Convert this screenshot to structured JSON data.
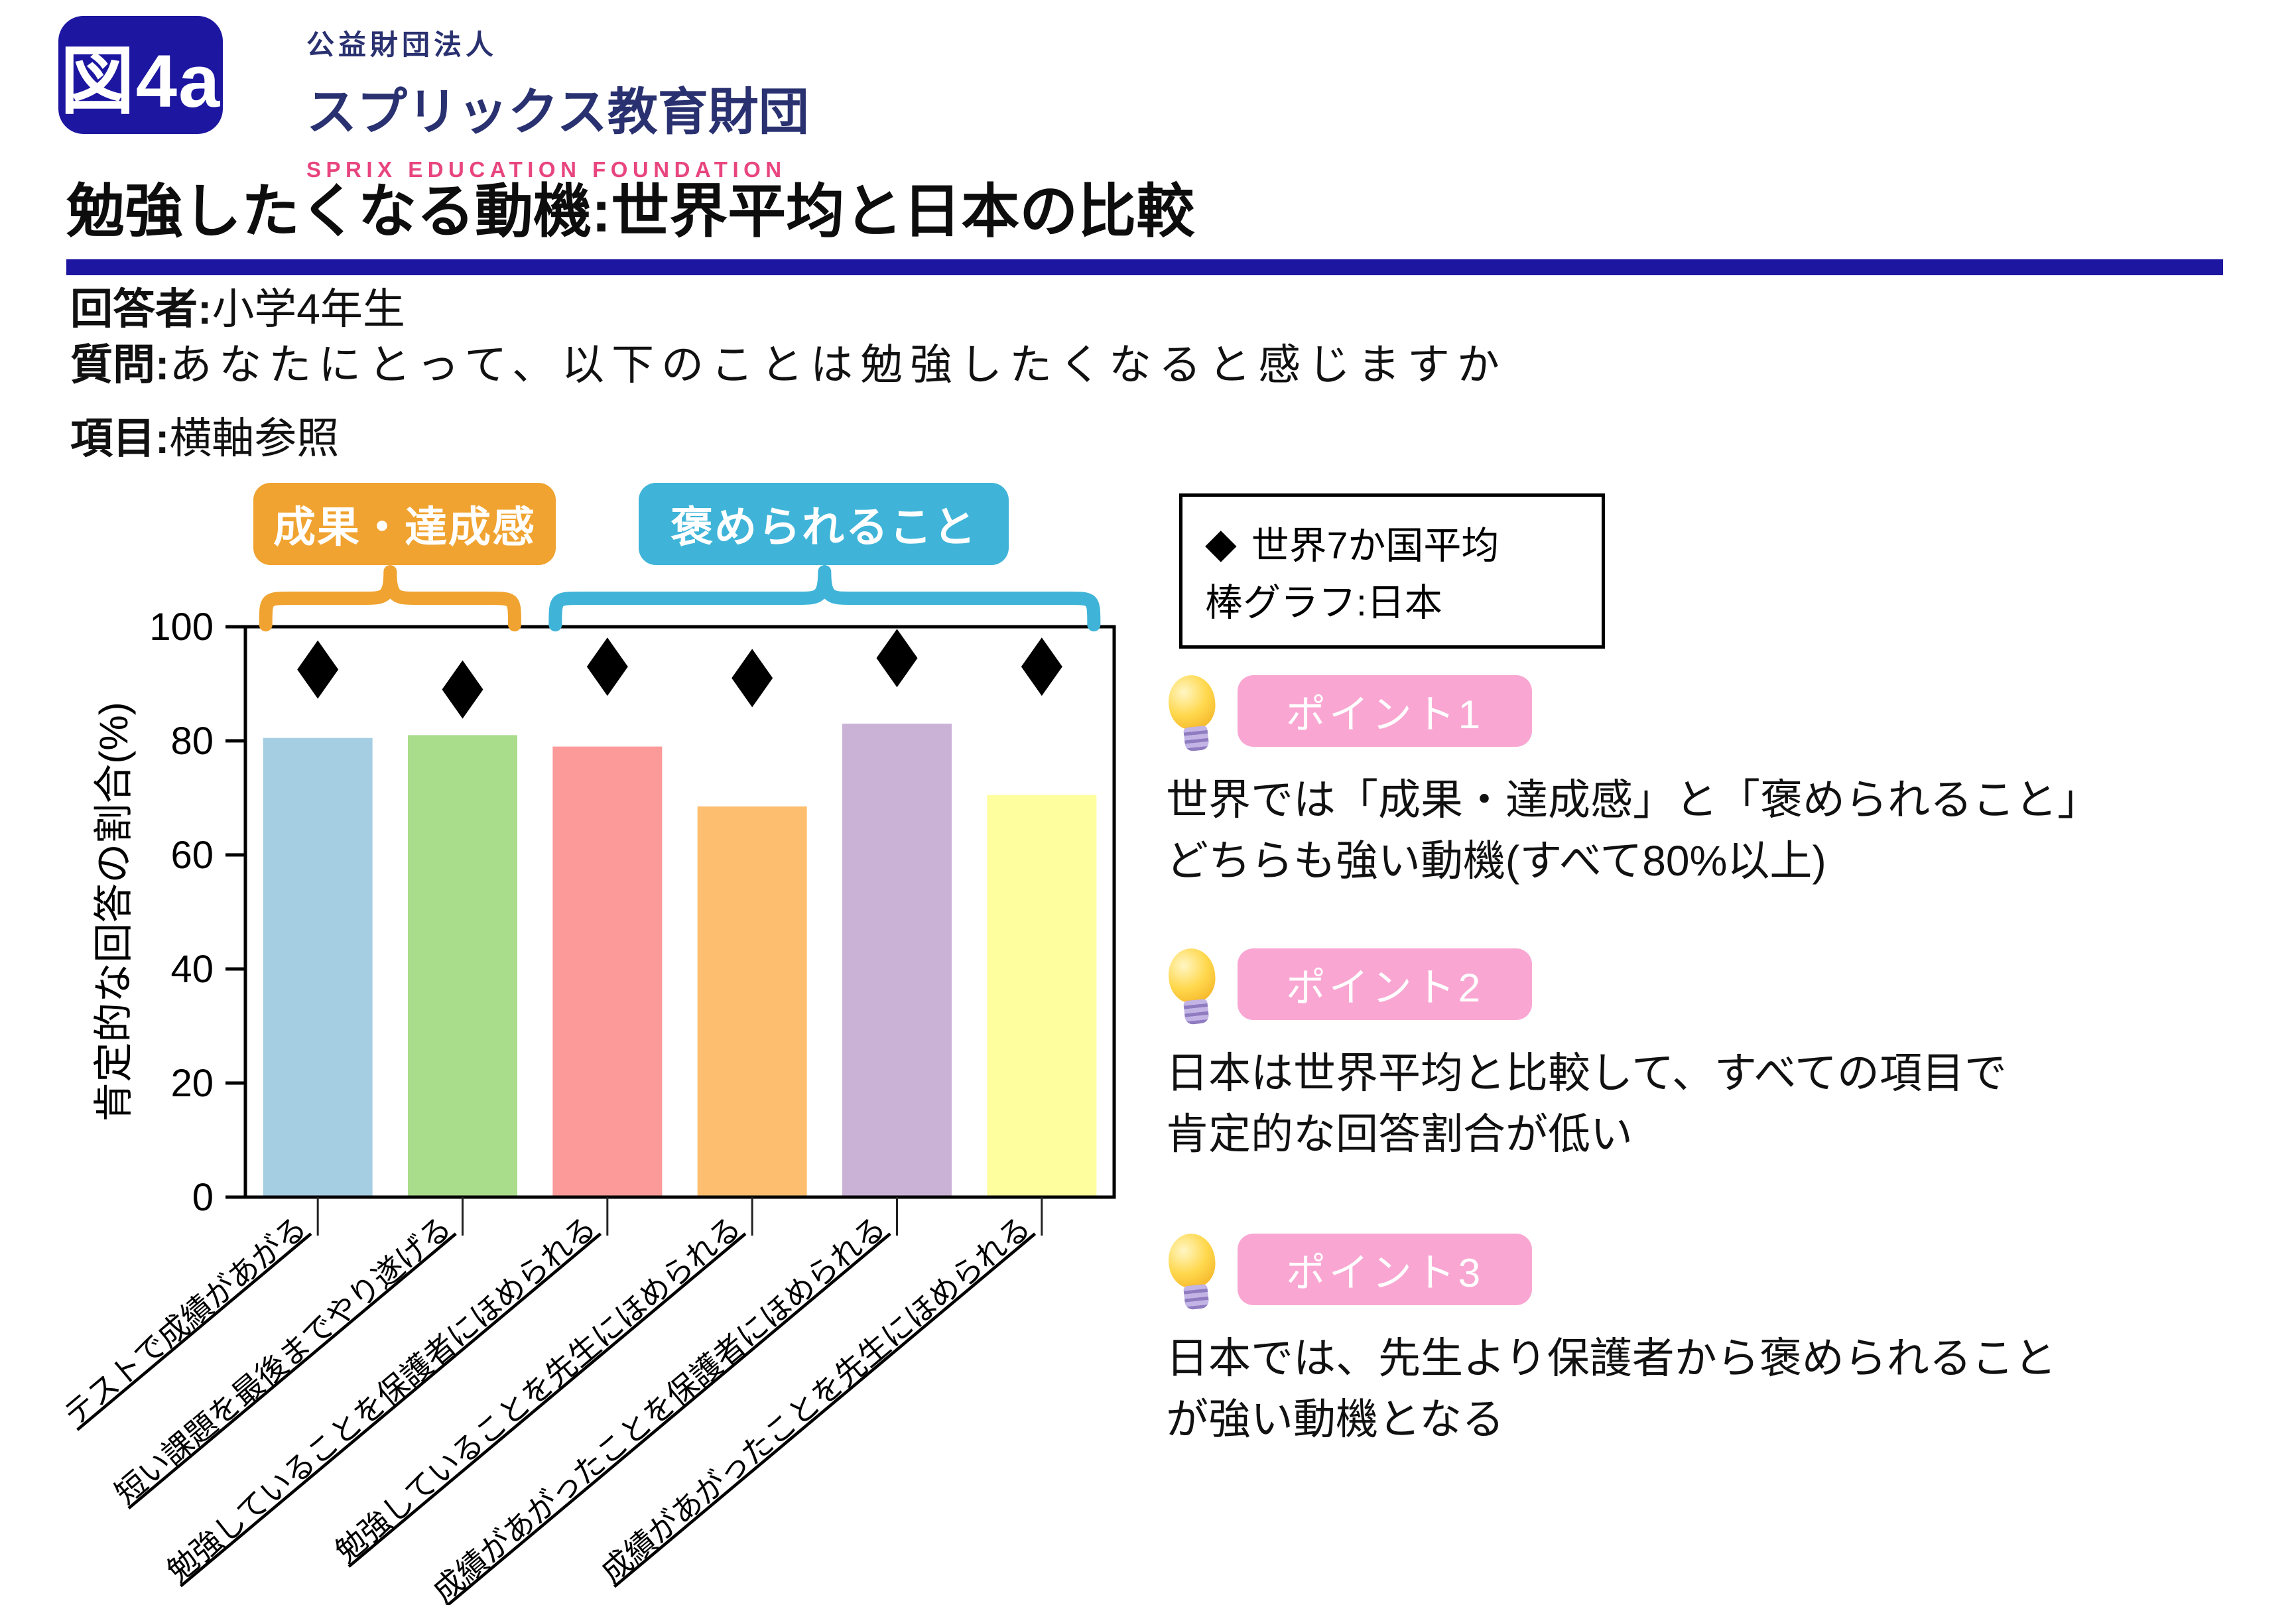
{
  "figure_tag": "図4a",
  "logo": {
    "org_type": "公益財団法人",
    "org_name": "スプリックス教育財団",
    "org_name_en": "SPRIX EDUCATION FOUNDATION"
  },
  "title": "勉強したくなる動機:世界平均と日本の比較",
  "meta": [
    {
      "label": "回答者:",
      "value": "小学4年生"
    },
    {
      "label": "質問:",
      "value": "あなたにとって、以下のことは勉強したくなると感じますか"
    },
    {
      "label": "項目:",
      "value": "横軸参照"
    }
  ],
  "legend": {
    "marker": "◆",
    "world": "世界7か国平均",
    "bars": "棒グラフ:日本"
  },
  "groups": [
    {
      "label": "成果・達成感",
      "color": "#F0A330",
      "span": [
        0,
        1
      ]
    },
    {
      "label": "褒められること",
      "color": "#3FB4D8",
      "span": [
        2,
        5
      ]
    }
  ],
  "chart_data": {
    "type": "bar",
    "categories": [
      "テストで成績があがる",
      "短い課題を最後までやり遂げる",
      "勉強していることを保護者にほめられる",
      "勉強していることを先生にほめられる",
      "成績があがったことを保護者にほめられる",
      "成績があがったことを先生にほめられる"
    ],
    "bar_colors": [
      "#A6CEE3",
      "#A9DD8B",
      "#FB9A99",
      "#FDBF6F",
      "#CAB2D6",
      "#FFFE9E"
    ],
    "series": [
      {
        "name": "日本",
        "type": "bar",
        "values": [
          80.5,
          81,
          79,
          68.5,
          83,
          70.5
        ]
      },
      {
        "name": "世界7か国平均",
        "type": "scatter",
        "marker": "diamond",
        "marker_color": "#000000",
        "values": [
          92.5,
          89,
          93,
          91,
          94.5,
          93
        ]
      }
    ],
    "ylabel": "肯定的な回答の割合(%)",
    "xlabel": "",
    "ylim": [
      0,
      100
    ],
    "yticks": [
      0,
      20,
      40,
      60,
      80,
      100
    ],
    "grid": false,
    "legend_position": "top-right"
  },
  "points": [
    {
      "badge": "ポイント1",
      "lines": [
        "世界では「成果・達成感」と「褒められること」",
        "どちらも強い動機(すべて80%以上)"
      ]
    },
    {
      "badge": "ポイント2",
      "lines": [
        "日本は世界平均と比較して、すべての項目で",
        "肯定的な回答割合が低い"
      ]
    },
    {
      "badge": "ポイント3",
      "lines": [
        "日本では、先生より保護者から褒められること",
        "が強い動機となる"
      ]
    }
  ],
  "colors": {
    "navy": "#1D16A0",
    "logo_navy": "#2A3170",
    "logo_pink": "#E8457F",
    "point_badge_pink": "#F9A7D2",
    "diamond": "#000000",
    "text": "#111111"
  }
}
